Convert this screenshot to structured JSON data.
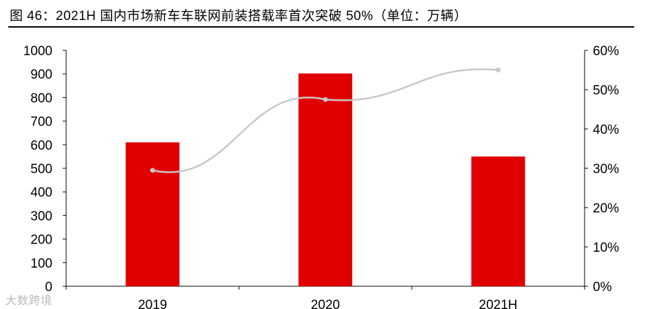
{
  "title": "图 46：2021H 国内市场新车车联网前装搭载率首次突破 50%（单位：万辆）",
  "watermark": "大数跨境",
  "colors": {
    "bar": "#e00000",
    "line": "#c8c8c8",
    "axis": "#000000"
  },
  "chart_data": {
    "type": "bar",
    "categories": [
      "2019",
      "2020",
      "2021H"
    ],
    "series": [
      {
        "type": "bar",
        "axis": "left",
        "values": [
          610,
          902,
          550
        ]
      },
      {
        "type": "line",
        "axis": "right",
        "values": [
          0.295,
          0.475,
          0.55
        ]
      }
    ],
    "ylim_left": [
      0,
      1000
    ],
    "yticks_left": [
      "0",
      "100",
      "200",
      "300",
      "400",
      "500",
      "600",
      "700",
      "800",
      "900",
      "1000"
    ],
    "ylim_right": [
      0,
      0.6
    ],
    "yticks_right": [
      "0%",
      "10%",
      "20%",
      "30%",
      "40%",
      "50%",
      "60%"
    ],
    "grid": false,
    "legend": "none"
  }
}
